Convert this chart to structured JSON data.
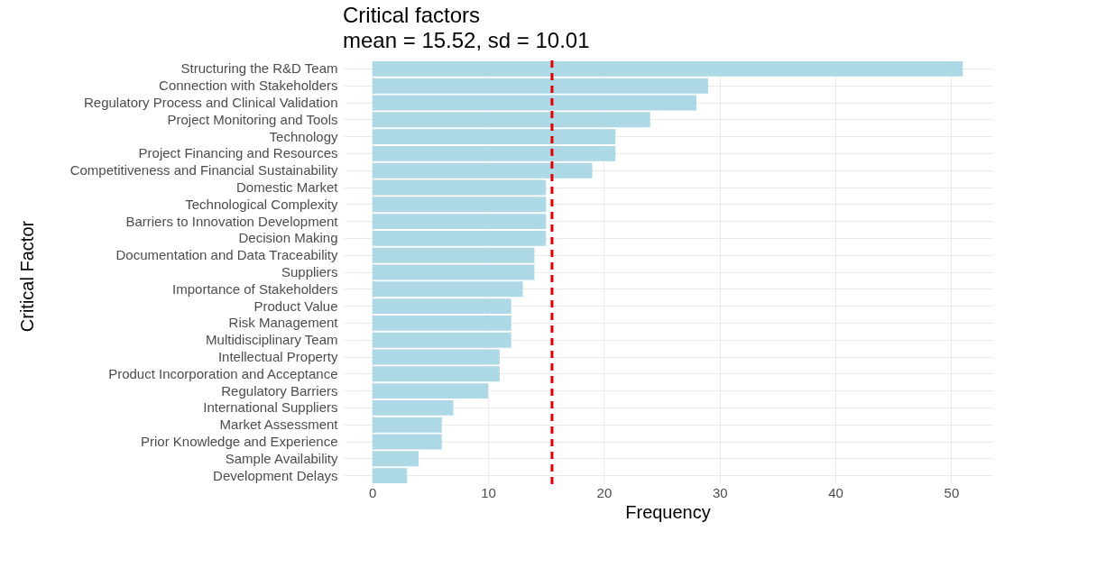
{
  "chart_data": {
    "type": "bar",
    "orientation": "horizontal",
    "title": "Critical factors",
    "subtitle": "mean = 15.52, sd = 10.01",
    "xlabel": "Frequency",
    "ylabel": "Critical Factor",
    "categories": [
      "Structuring the R&D Team",
      "Connection with Stakeholders",
      "Regulatory Process and Clinical Validation",
      "Project Monitoring and Tools",
      "Technology",
      "Project Financing and Resources",
      "Competitiveness and Financial Sustainability",
      "Domestic Market",
      "Technological Complexity",
      "Barriers to Innovation Development",
      "Decision Making",
      "Documentation and Data Traceability",
      "Suppliers",
      "Importance of Stakeholders",
      "Product Value",
      "Risk Management",
      "Multidisciplinary Team",
      "Intellectual Property",
      "Product Incorporation and Acceptance",
      "Regulatory Barriers",
      "International Suppliers",
      "Market Assessment",
      "Prior Knowledge and Experience",
      "Sample Availability",
      "Development Delays"
    ],
    "values": [
      51,
      29,
      28,
      24,
      21,
      21,
      19,
      15,
      15,
      15,
      15,
      14,
      14,
      13,
      12,
      12,
      12,
      11,
      11,
      10,
      7,
      6,
      6,
      4,
      3
    ],
    "color": "#add8e6",
    "xlim": [
      -2.55,
      53.55
    ],
    "xticks": [
      0,
      10,
      20,
      30,
      40,
      50
    ],
    "grid": true,
    "ref_lines": [
      {
        "axis": "x",
        "value": 15.52,
        "color": "#e00000",
        "line_style": "dashed"
      }
    ]
  }
}
